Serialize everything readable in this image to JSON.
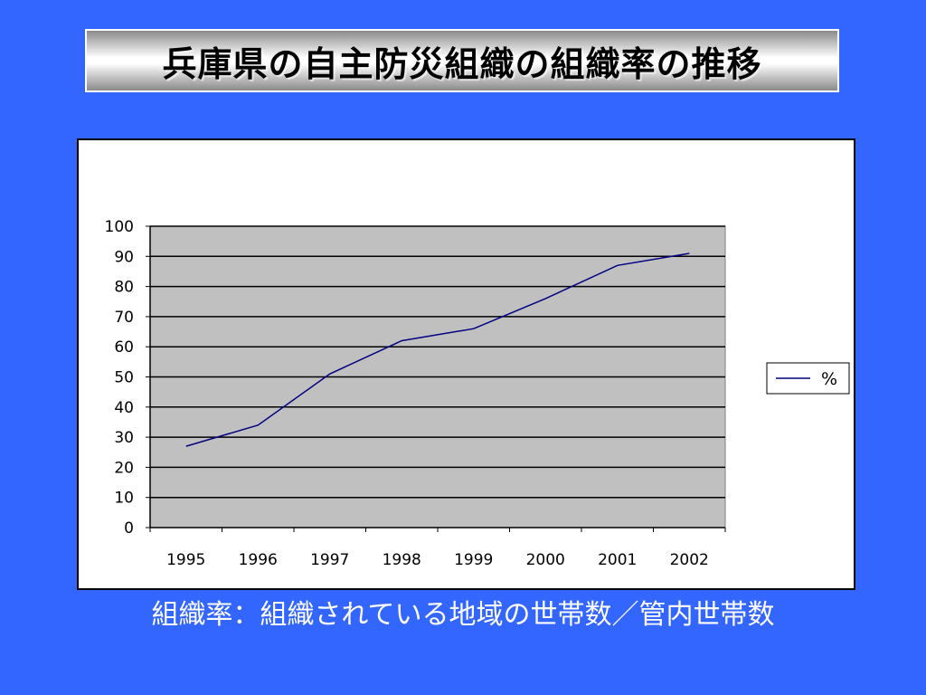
{
  "title": "兵庫県の自主防災組織の組織率の推移",
  "caption": "組織率：組織されている地域の世帯数／管内世帯数",
  "colors": {
    "background": "#3366ff",
    "plot_area": "#c0c0c0",
    "series_line": "#000080"
  },
  "chart_data": {
    "type": "line",
    "categories": [
      "1995",
      "1996",
      "1997",
      "1998",
      "1999",
      "2000",
      "2001",
      "2002"
    ],
    "series": [
      {
        "name": "%",
        "values": [
          27,
          34,
          51,
          62,
          66,
          76,
          87,
          91
        ]
      }
    ],
    "y_ticks": [
      "0",
      "10",
      "20",
      "30",
      "40",
      "50",
      "60",
      "70",
      "80",
      "90",
      "100"
    ],
    "ylim": [
      0,
      100
    ],
    "grid": true,
    "legend_position": "right"
  }
}
